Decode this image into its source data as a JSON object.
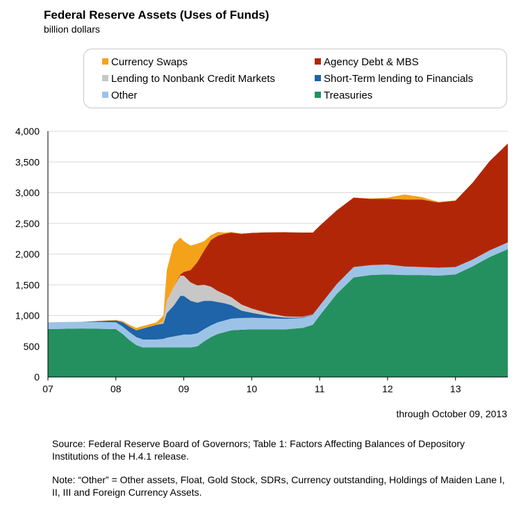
{
  "header": {
    "title": "Federal Reserve Assets (Uses of Funds)",
    "subtitle": "billion dollars"
  },
  "legend": {
    "items": [
      {
        "label": "Currency Swaps",
        "color": "#f5a21b"
      },
      {
        "label": "Agency Debt & MBS",
        "color": "#b22608"
      },
      {
        "label": "Lending to Nonbank Credit Markets",
        "color": "#c7c7c7"
      },
      {
        "label": "Short-Term lending to Financials",
        "color": "#1f63a8"
      },
      {
        "label": "Other",
        "color": "#9cc3e6"
      },
      {
        "label": "Treasuries",
        "color": "#24905f"
      }
    ]
  },
  "chart_data": {
    "type": "area",
    "stacked": true,
    "x": [
      2007.0,
      2007.5,
      2008.0,
      2008.1,
      2008.2,
      2008.3,
      2008.4,
      2008.6,
      2008.7,
      2008.75,
      2008.85,
      2008.95,
      2009.0,
      2009.1,
      2009.2,
      2009.3,
      2009.4,
      2009.5,
      2009.6,
      2009.7,
      2009.85,
      2010.0,
      2010.25,
      2010.5,
      2010.75,
      2010.9,
      2011.0,
      2011.25,
      2011.5,
      2011.75,
      2012.0,
      2012.25,
      2012.5,
      2012.75,
      2013.0,
      2013.25,
      2013.5,
      2013.77
    ],
    "series": [
      {
        "name": "Treasuries",
        "color": "#24905f",
        "values": [
          780,
          790,
          780,
          700,
          600,
          520,
          480,
          480,
          480,
          480,
          480,
          480,
          480,
          480,
          500,
          580,
          650,
          700,
          730,
          760,
          770,
          775,
          775,
          776,
          800,
          850,
          1000,
          1350,
          1620,
          1660,
          1670,
          1660,
          1660,
          1650,
          1670,
          1800,
          1950,
          2080
        ]
      },
      {
        "name": "Other",
        "color": "#9cc3e6",
        "values": [
          110,
          110,
          110,
          120,
          130,
          130,
          130,
          130,
          140,
          160,
          180,
          200,
          210,
          210,
          210,
          200,
          190,
          190,
          190,
          190,
          190,
          190,
          180,
          170,
          160,
          160,
          160,
          160,
          170,
          160,
          160,
          140,
          130,
          130,
          120,
          110,
          110,
          110
        ]
      },
      {
        "name": "Short-Term lending to Financials",
        "color": "#1f63a8",
        "values": [
          0,
          0,
          30,
          70,
          90,
          110,
          180,
          240,
          250,
          400,
          500,
          640,
          630,
          550,
          500,
          460,
          400,
          330,
          280,
          220,
          120,
          80,
          40,
          20,
          10,
          5,
          0,
          0,
          0,
          0,
          0,
          0,
          0,
          0,
          0,
          0,
          0,
          0
        ]
      },
      {
        "name": "Lending to Nonbank Credit Markets",
        "color": "#c7c7c7",
        "values": [
          0,
          0,
          0,
          0,
          0,
          0,
          0,
          0,
          30,
          200,
          300,
          330,
          330,
          300,
          280,
          260,
          230,
          180,
          150,
          130,
          100,
          70,
          40,
          20,
          10,
          5,
          0,
          0,
          0,
          0,
          0,
          0,
          0,
          0,
          0,
          0,
          0,
          0
        ]
      },
      {
        "name": "Agency Debt & MBS",
        "color": "#b22608",
        "values": [
          0,
          0,
          0,
          0,
          0,
          0,
          0,
          0,
          0,
          0,
          0,
          20,
          60,
          200,
          380,
          560,
          760,
          900,
          980,
          1050,
          1150,
          1230,
          1320,
          1370,
          1370,
          1330,
          1300,
          1200,
          1130,
          1080,
          1070,
          1090,
          1100,
          1060,
          1080,
          1250,
          1450,
          1610
        ]
      },
      {
        "name": "Currency Swaps",
        "color": "#f5a21b",
        "values": [
          0,
          0,
          10,
          20,
          30,
          40,
          40,
          40,
          100,
          500,
          700,
          600,
          500,
          400,
          300,
          150,
          80,
          60,
          20,
          10,
          5,
          2,
          1,
          1,
          1,
          1,
          1,
          1,
          1,
          5,
          20,
          80,
          40,
          10,
          5,
          1,
          1,
          1
        ]
      }
    ],
    "xlim": [
      2007.0,
      2013.77
    ],
    "ylim": [
      0,
      4000
    ],
    "yticks": [
      0,
      500,
      1000,
      1500,
      2000,
      2500,
      3000,
      3500,
      4000
    ],
    "ytick_labels": [
      "0",
      "500",
      "1,000",
      "1,500",
      "2,000",
      "2,500",
      "3,000",
      "3,500",
      "4,000"
    ],
    "xticks": [
      2007,
      2008,
      2009,
      2010,
      2011,
      2012,
      2013
    ],
    "xtick_labels": [
      "07",
      "08",
      "09",
      "10",
      "11",
      "12",
      "13"
    ],
    "grid": true,
    "legend_position": "top"
  },
  "footer": {
    "through": "through October 09, 2013",
    "source": "Source: Federal Reserve Board of Governors; Table 1:  Factors Affecting Balances of Depository Institutions of the H.4.1 release.",
    "note": "Note: “Other” = Other assets, Float, Gold Stock, SDRs, Currency outstanding, Holdings of Maiden Lane I, II, III and Foreign Currency Assets."
  }
}
